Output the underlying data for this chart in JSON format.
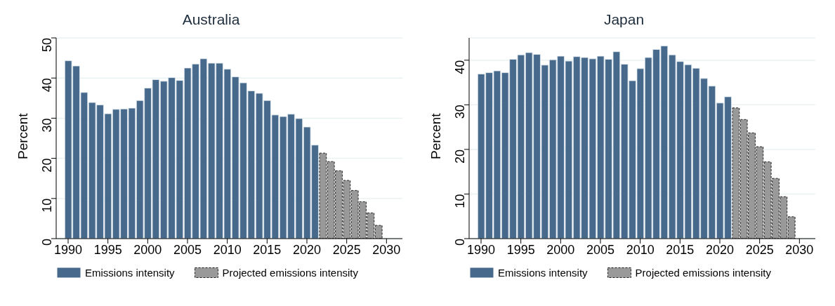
{
  "chart_data": [
    {
      "type": "bar",
      "title": "Australia",
      "ylabel": "Percent",
      "x": [
        1990,
        1991,
        1992,
        1993,
        1994,
        1995,
        1996,
        1997,
        1998,
        1999,
        2000,
        2001,
        2002,
        2003,
        2004,
        2005,
        2006,
        2007,
        2008,
        2009,
        2010,
        2011,
        2012,
        2013,
        2014,
        2015,
        2016,
        2017,
        2018,
        2019,
        2020,
        2021,
        2022,
        2023,
        2024,
        2025,
        2026,
        2027,
        2028,
        2029,
        2030
      ],
      "series": [
        {
          "name": "Emissions intensity",
          "color": "#46698c",
          "values": [
            44.3,
            43,
            36.4,
            33.9,
            33.3,
            31.1,
            32.2,
            32.3,
            32.5,
            34.4,
            37.5,
            39.6,
            39.2,
            40.1,
            39.4,
            42.5,
            43.5,
            44.8,
            43.7,
            43.7,
            42.2,
            40.3,
            38.8,
            36.8,
            36.2,
            34.4,
            30.8,
            30.4,
            31.0,
            29.9,
            27.8,
            23.3,
            null,
            null,
            null,
            null,
            null,
            null,
            null,
            null,
            null
          ]
        },
        {
          "name": "Projected emissions intensity",
          "color": "#999999",
          "line_style": "dashed",
          "values": [
            null,
            null,
            null,
            null,
            null,
            null,
            null,
            null,
            null,
            null,
            null,
            null,
            null,
            null,
            null,
            null,
            null,
            null,
            null,
            null,
            null,
            null,
            null,
            null,
            null,
            null,
            null,
            null,
            null,
            null,
            null,
            null,
            21.3,
            19.2,
            16.9,
            14.5,
            12.0,
            9.2,
            6.4,
            3.3,
            0
          ]
        }
      ],
      "xlim": [
        1988.5,
        2032
      ],
      "xticks": [
        1990,
        1995,
        2000,
        2005,
        2010,
        2015,
        2020,
        2025,
        2030
      ],
      "ylim": [
        0,
        50
      ],
      "yticks": [
        0,
        10,
        20,
        30,
        40,
        50
      ],
      "grid": "y",
      "legend": "bottom"
    },
    {
      "type": "bar",
      "title": "Japan",
      "ylabel": "Percent",
      "x": [
        1990,
        1991,
        1992,
        1993,
        1994,
        1995,
        1996,
        1997,
        1998,
        1999,
        2000,
        2001,
        2002,
        2003,
        2004,
        2005,
        2006,
        2007,
        2008,
        2009,
        2010,
        2011,
        2012,
        2013,
        2014,
        2015,
        2016,
        2017,
        2018,
        2019,
        2020,
        2021,
        2022,
        2023,
        2024,
        2025,
        2026,
        2027,
        2028,
        2029,
        2030
      ],
      "series": [
        {
          "name": "Emissions intensity",
          "color": "#46698c",
          "values": [
            36.9,
            37.2,
            37.6,
            37.2,
            40.2,
            41.2,
            41.7,
            41.3,
            38.9,
            40.1,
            40.9,
            39.8,
            40.8,
            40.6,
            40.3,
            40.9,
            40.2,
            41.9,
            39.1,
            35.4,
            38.1,
            40.6,
            42.4,
            43.2,
            41.2,
            39.7,
            39.0,
            38.2,
            35.9,
            34.2,
            30.4,
            31.8,
            null,
            null,
            null,
            null,
            null,
            null,
            null,
            null,
            null
          ]
        },
        {
          "name": "Projected emissions intensity",
          "color": "#999999",
          "line_style": "dashed",
          "values": [
            null,
            null,
            null,
            null,
            null,
            null,
            null,
            null,
            null,
            null,
            null,
            null,
            null,
            null,
            null,
            null,
            null,
            null,
            null,
            null,
            null,
            null,
            null,
            null,
            null,
            null,
            null,
            null,
            null,
            null,
            null,
            null,
            29.3,
            26.7,
            23.7,
            20.6,
            17.2,
            13.5,
            9.4,
            4.9,
            0
          ]
        }
      ],
      "xlim": [
        1988.5,
        2032
      ],
      "xticks": [
        1990,
        1995,
        2000,
        2005,
        2010,
        2015,
        2020,
        2025,
        2030
      ],
      "ylim": [
        0,
        45
      ],
      "yticks": [
        0,
        10,
        20,
        30,
        40
      ],
      "grid": "y",
      "legend": "bottom"
    }
  ]
}
